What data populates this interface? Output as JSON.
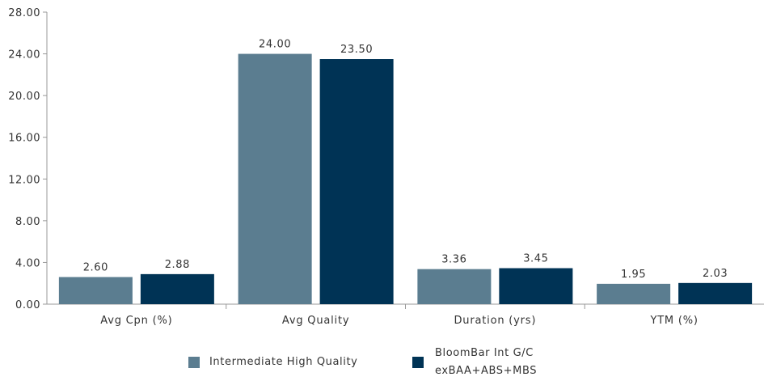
{
  "colors": {
    "series1": "#5b7d90",
    "series2": "#003355",
    "axis": "#999999",
    "grid": "#d0d0d0"
  },
  "chart_data": {
    "type": "bar",
    "title": "",
    "xlabel": "",
    "ylabel": "",
    "categories": [
      "Avg Cpn (%)",
      "Avg Quality",
      "Duration (yrs)",
      "YTM (%)"
    ],
    "series": [
      {
        "name": "Intermediate High Quality",
        "values": [
          2.6,
          24.0,
          3.36,
          1.95
        ],
        "labels": [
          "2.60",
          "24.00",
          "3.36",
          "1.95"
        ]
      },
      {
        "name": "BloomBar Int G/C exBAA+ABS+MBS",
        "values": [
          2.88,
          23.5,
          3.45,
          2.03
        ],
        "labels": [
          "2.88",
          "23.50",
          "3.45",
          "2.03"
        ]
      }
    ],
    "ylim": [
      0,
      28
    ],
    "yticks": [
      "0.00",
      "4.00",
      "8.00",
      "12.00",
      "16.00",
      "20.00",
      "24.00",
      "28.00"
    ],
    "grid": false,
    "legend_position": "bottom"
  },
  "legend": {
    "series1_label": "Intermediate High Quality",
    "series2_line1": "BloomBar Int G/C",
    "series2_line2": "exBAA+ABS+MBS"
  }
}
